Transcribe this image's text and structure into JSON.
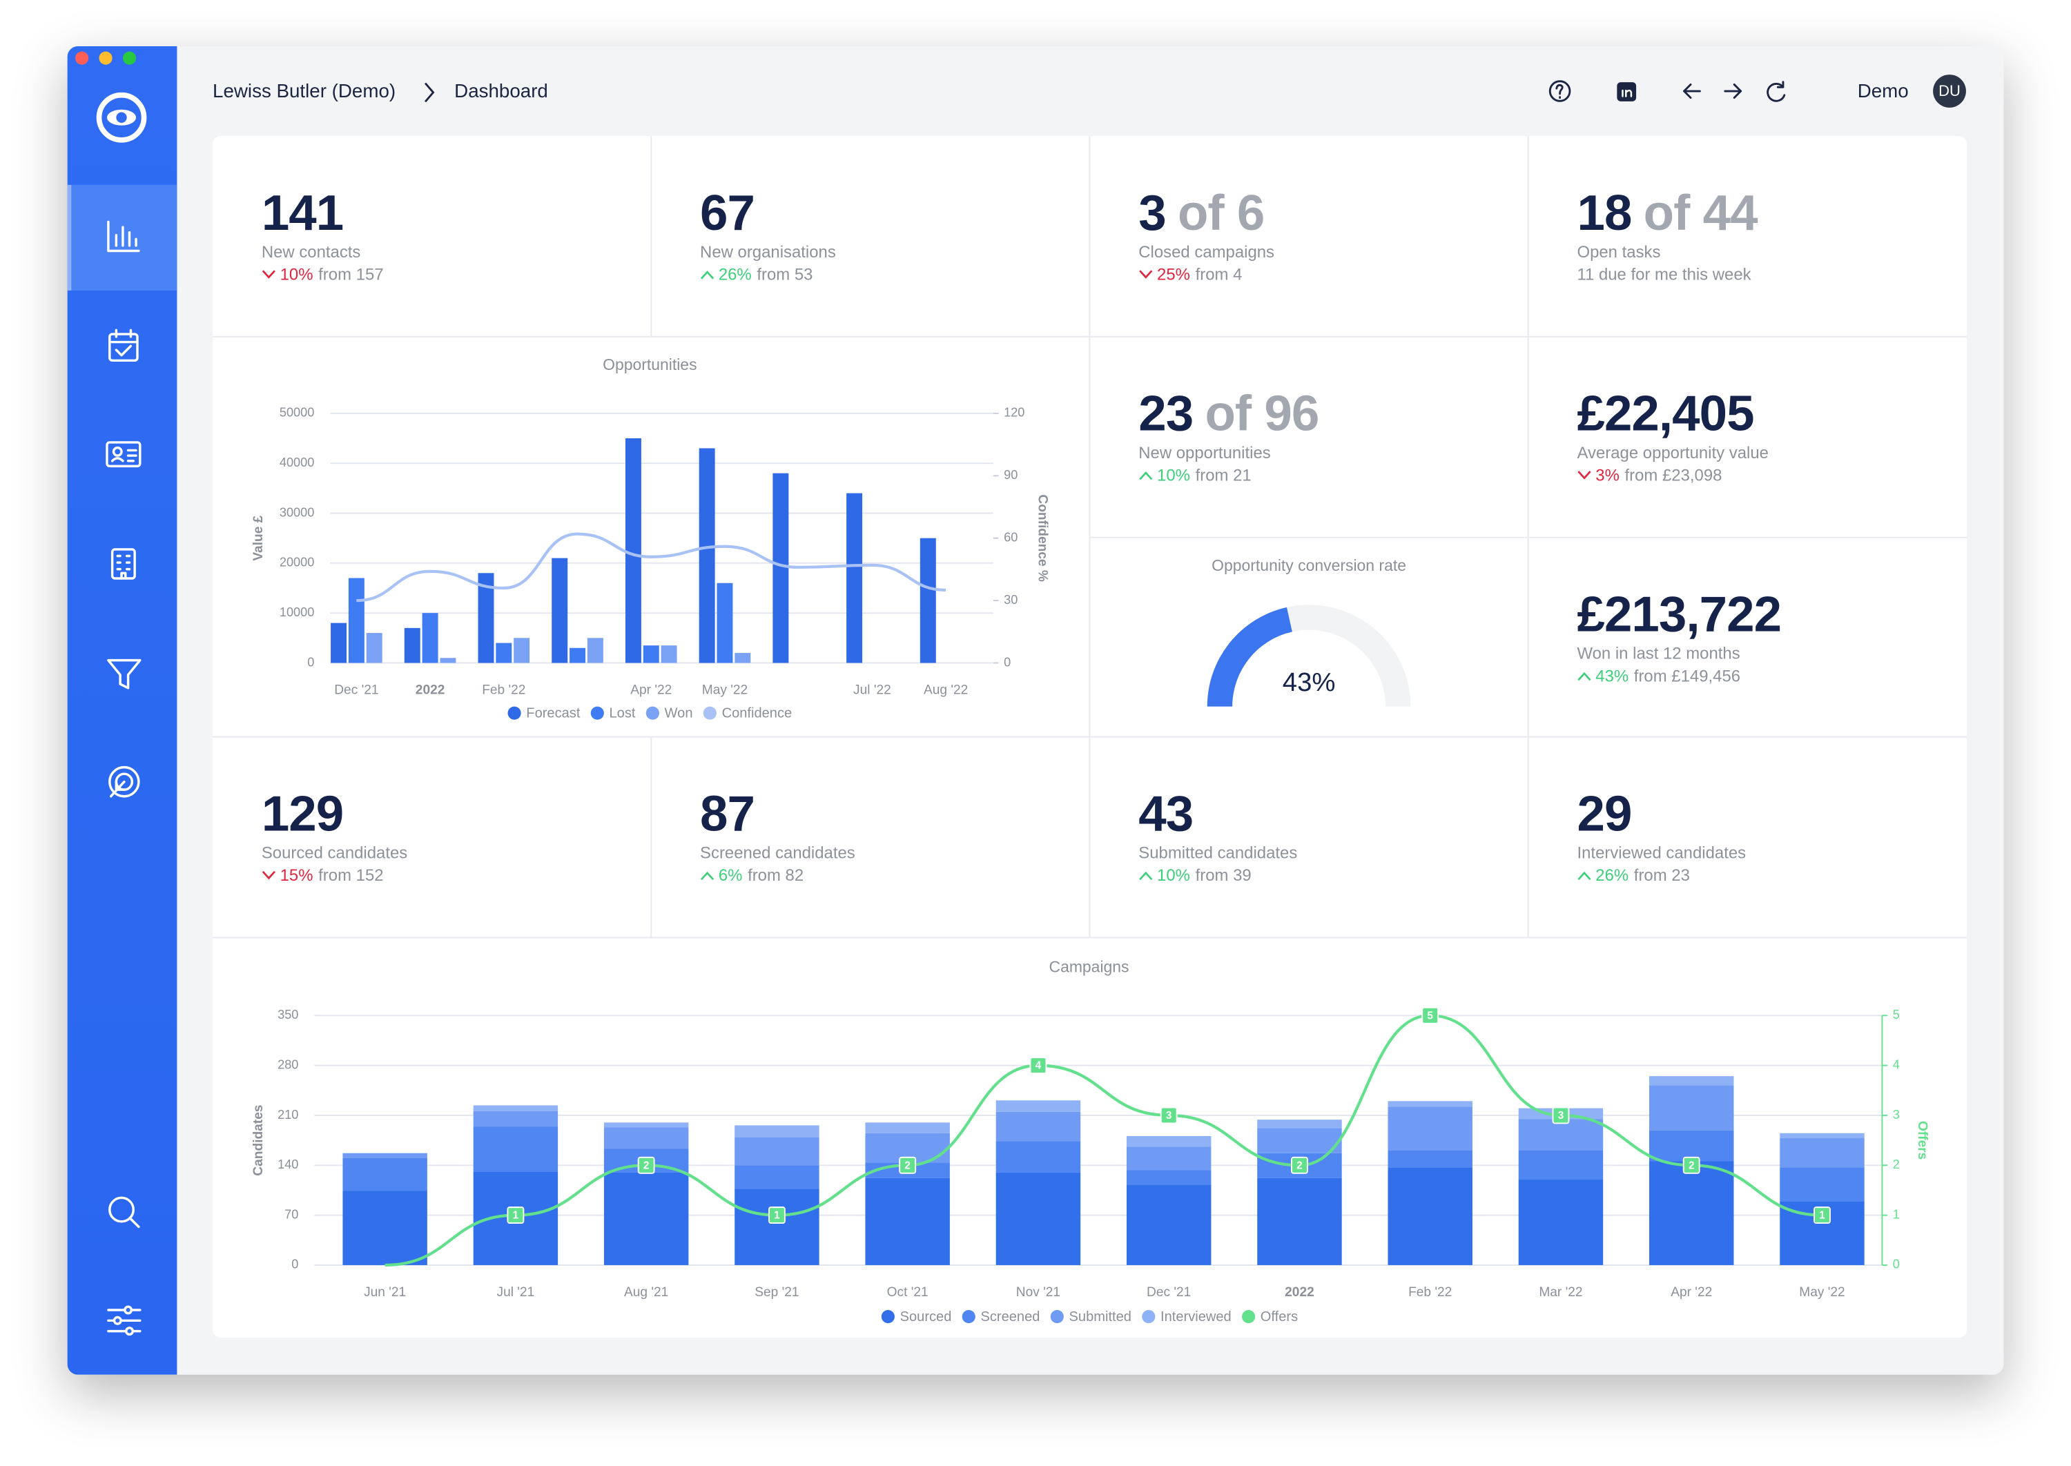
{
  "header": {
    "breadcrumb": [
      "Lewiss Butler (Demo)",
      "Dashboard"
    ],
    "user": "Demo",
    "avatar": "DU"
  },
  "kpis": [
    {
      "value": "141",
      "label": "New contacts",
      "change": "10%",
      "trend": "down",
      "compare": "from 157"
    },
    {
      "value": "67",
      "label": "New organisations",
      "change": "26%",
      "trend": "up",
      "compare": "from 53"
    },
    {
      "value": "3",
      "of": "of 6",
      "label": "Closed campaigns",
      "change": "25%",
      "trend": "down",
      "compare": "from 4"
    },
    {
      "value": "18",
      "of": "of 44",
      "label": "Open tasks",
      "note": "11 due for me this week"
    },
    {
      "value": "23",
      "of": "of 96",
      "label": "New opportunities",
      "change": "10%",
      "trend": "up",
      "compare": "from 21"
    },
    {
      "value": "£22,405",
      "label": "Average opportunity value",
      "change": "3%",
      "trend": "down",
      "compare": "from £23,098"
    },
    {
      "value": "£213,722",
      "label": "Won in last 12 months",
      "change": "43%",
      "trend": "up",
      "compare": "from £149,456"
    },
    {
      "value": "129",
      "label": "Sourced candidates",
      "change": "15%",
      "trend": "down",
      "compare": "from 152"
    },
    {
      "value": "87",
      "label": "Screened candidates",
      "change": "6%",
      "trend": "up",
      "compare": "from 82"
    },
    {
      "value": "43",
      "label": "Submitted candidates",
      "change": "10%",
      "trend": "up",
      "compare": "from 39"
    },
    {
      "value": "29",
      "label": "Interviewed candidates",
      "change": "26%",
      "trend": "up",
      "compare": "from 23"
    }
  ],
  "opportunities_chart": {
    "type": "bar",
    "title": "Opportunities",
    "categories": [
      "Dec '21",
      "2022",
      "Feb '22",
      null,
      "Apr '22",
      "May '22",
      null,
      "Jul '22",
      "Aug '22"
    ],
    "series": [
      {
        "name": "Forecast",
        "color": "#2f69e6",
        "values": [
          8000,
          7000,
          18000,
          21000,
          45000,
          43000,
          38000,
          34000,
          25000
        ]
      },
      {
        "name": "Lost",
        "color": "#3f7cf3",
        "values": [
          17000,
          10000,
          4000,
          3000,
          3500,
          16000,
          null,
          null,
          null
        ]
      },
      {
        "name": "Won",
        "color": "#79a2f5",
        "values": [
          6000,
          1000,
          5000,
          5000,
          3500,
          2000,
          null,
          null,
          null
        ]
      },
      {
        "name": "Confidence",
        "color": "#a9c2f6",
        "type": "line",
        "axis": "y2",
        "values": [
          30,
          44,
          36,
          62,
          51,
          56,
          46,
          47,
          35
        ]
      }
    ],
    "ylabel": "Value £",
    "y2label": "Confidence %",
    "ylim": [
      0,
      50000
    ],
    "yticks": [
      0,
      10000,
      20000,
      30000,
      40000,
      50000
    ],
    "y2lim": [
      0,
      120
    ],
    "y2ticks": [
      0,
      30,
      60,
      90,
      120
    ],
    "grid": true,
    "legend": "bottom"
  },
  "conversion_gauge": {
    "type": "gauge",
    "title": "Opportunity conversion rate",
    "value": 43,
    "value_label": "43%",
    "lim": [
      0,
      100
    ],
    "color": "#3b76f0"
  },
  "campaigns_chart": {
    "type": "bar",
    "stacked": true,
    "title": "Campaigns",
    "categories": [
      "Jun '21",
      "Jul '21",
      "Aug '21",
      "Sep '21",
      "Oct '21",
      "Nov '21",
      "Dec '21",
      "2022",
      "Feb '22",
      "Mar '22",
      "Apr '22",
      "May '22"
    ],
    "series": [
      {
        "name": "Sourced",
        "color": "#3170ea",
        "values": [
          104,
          131,
          130,
          107,
          122,
          130,
          113,
          122,
          137,
          120,
          146,
          89
        ]
      },
      {
        "name": "Screened",
        "color": "#4f86f2",
        "values": [
          46,
          63,
          33,
          33,
          22,
          44,
          20,
          35,
          24,
          41,
          43,
          48
        ]
      },
      {
        "name": "Submitted",
        "color": "#6f9bf4",
        "values": [
          7,
          22,
          30,
          39,
          41,
          41,
          33,
          35,
          61,
          44,
          63,
          41
        ]
      },
      {
        "name": "Interviewed",
        "color": "#8fb1f6",
        "values": [
          0,
          8,
          7,
          17,
          15,
          16,
          15,
          12,
          8,
          15,
          13,
          7
        ]
      },
      {
        "name": "Offers",
        "color": "#62e08c",
        "type": "line",
        "axis": "y2",
        "values": [
          0,
          1,
          2,
          1,
          2,
          4,
          3,
          2,
          5,
          3,
          2,
          1
        ]
      }
    ],
    "ylabel": "Candidates",
    "y2label": "Offers",
    "ylim": [
      0,
      350
    ],
    "yticks": [
      0,
      70,
      140,
      210,
      280,
      350
    ],
    "y2lim": [
      0,
      5
    ],
    "y2ticks": [
      0,
      1,
      2,
      3,
      4,
      5
    ],
    "grid": true,
    "legend": "bottom"
  }
}
